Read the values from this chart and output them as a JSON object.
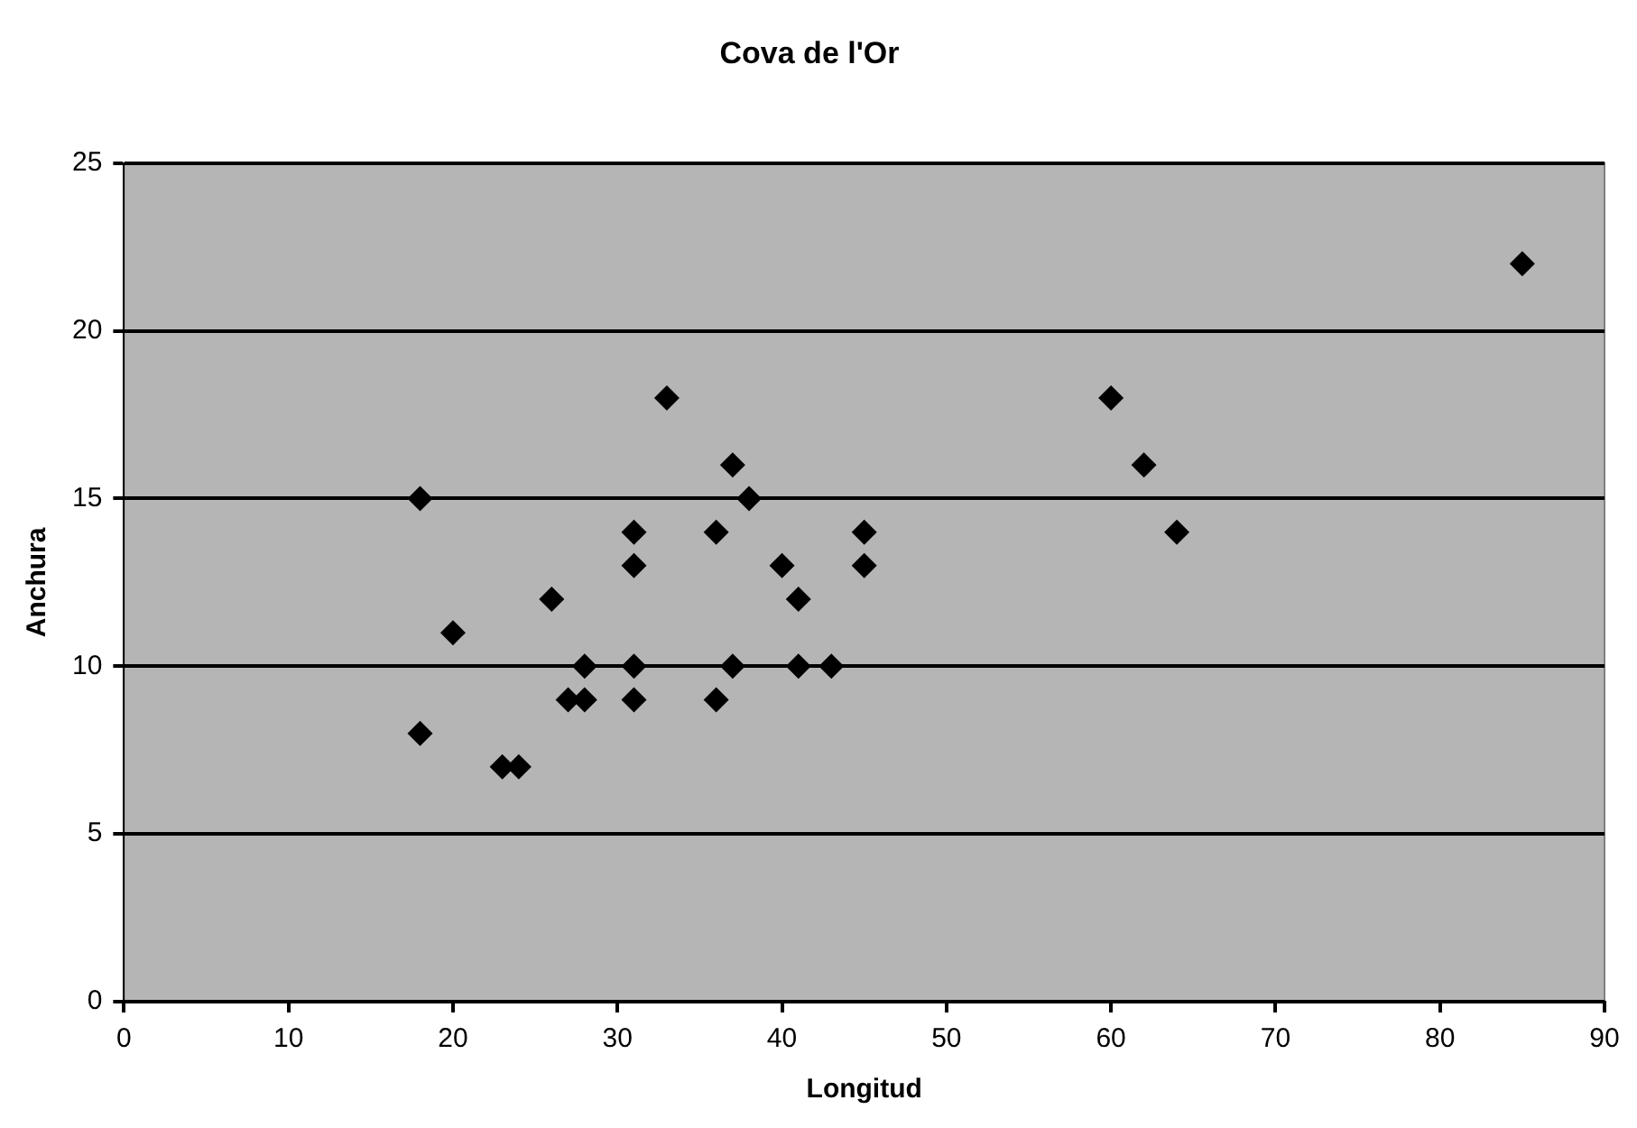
{
  "chart_data": {
    "type": "scatter",
    "title": "Cova de l'Or",
    "xlabel": "Longitud",
    "ylabel": "Anchura",
    "x": [
      18,
      18,
      20,
      23,
      24,
      26,
      27,
      28,
      28,
      31,
      31,
      31,
      31,
      33,
      36,
      36,
      37,
      37,
      38,
      40,
      41,
      41,
      43,
      45,
      45,
      60,
      62,
      64,
      85
    ],
    "values": [
      15,
      8,
      11,
      7,
      7,
      12,
      9,
      9,
      10,
      14,
      13,
      10,
      9,
      18,
      14,
      9,
      16,
      10,
      15,
      13,
      12,
      10,
      10,
      14,
      13,
      18,
      16,
      14,
      22
    ],
    "color": "#000000",
    "marker": "diamond",
    "xlim": [
      0,
      90
    ],
    "xticks": [
      0,
      10,
      20,
      30,
      40,
      50,
      60,
      70,
      80,
      90
    ],
    "ylim": [
      0,
      25
    ],
    "yticks": [
      0,
      5,
      10,
      15,
      20,
      25
    ],
    "grid": "y",
    "legend": false
  }
}
